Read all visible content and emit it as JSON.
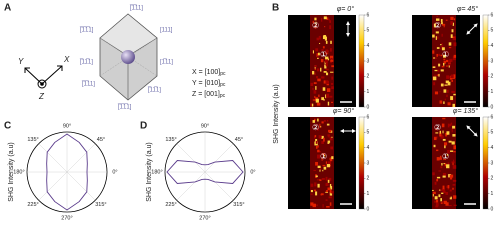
{
  "panels": {
    "a": "A",
    "b": "B",
    "c": "C",
    "d": "D"
  },
  "crystal": {
    "labels": [
      "[̅1̅11]",
      "[̅1̅1̅1]",
      "[111]",
      "[̅11̅1]",
      "[1̅11]",
      "[̅1̅11]",
      "[̅11̅1]",
      "[̅1̅1̅1]"
    ],
    "axes": {
      "x": "X",
      "y": "Y",
      "z": "Z"
    },
    "equations": [
      {
        "text": "X = [100]",
        "sub": "pc"
      },
      {
        "text": "Y = [010]",
        "sub": "pc"
      },
      {
        "text": "Z = [001]",
        "sub": "pc"
      }
    ]
  },
  "heatmaps": {
    "y_label": "SHG Intensity (a.u)",
    "clim": [
      0,
      6
    ],
    "colorbar_ticks": [
      0,
      1,
      2,
      3,
      4,
      5,
      6
    ],
    "markers": [
      "②",
      "①"
    ],
    "panels": [
      {
        "phi": "φ= 0°"
      },
      {
        "phi": "φ= 45°"
      },
      {
        "phi": "φ= 90°"
      },
      {
        "phi": "φ= 135°"
      }
    ]
  },
  "polar": {
    "rlim": [
      0,
      1
    ],
    "angle_ticks": [
      {
        "value": 90,
        "label": "90°"
      },
      {
        "value": 45,
        "label": "45°"
      },
      {
        "value": 0,
        "label": "0°"
      },
      {
        "value": 315,
        "label": "315°"
      },
      {
        "value": 270,
        "label": "270°"
      },
      {
        "value": 225,
        "label": "225°"
      },
      {
        "value": 180,
        "label": "180°"
      },
      {
        "value": 135,
        "label": "135°"
      }
    ],
    "plots": [
      {
        "y_label": "SHG Intensity (a.u)",
        "color": "#5b3c8c",
        "theta": [
          0,
          22.5,
          45,
          67.5,
          90,
          112.5,
          135,
          157.5,
          180,
          202.5,
          225,
          247.5,
          270,
          292.5,
          315,
          337.5
        ],
        "r": [
          0.5,
          0.55,
          0.7,
          0.8,
          0.95,
          0.8,
          0.7,
          0.55,
          0.5,
          0.55,
          0.7,
          0.8,
          0.95,
          0.8,
          0.7,
          0.55
        ]
      },
      {
        "y_label": "SHG Intensity (a.u)",
        "color": "#5b3c8c",
        "theta": [
          0,
          22.5,
          45,
          67.5,
          90,
          112.5,
          135,
          157.5,
          180,
          202.5,
          225,
          247.5,
          270,
          292.5,
          315,
          337.5
        ],
        "r": [
          0.95,
          0.75,
          0.35,
          0.2,
          0.18,
          0.2,
          0.35,
          0.75,
          0.95,
          0.75,
          0.35,
          0.2,
          0.18,
          0.2,
          0.35,
          0.75
        ]
      }
    ]
  }
}
